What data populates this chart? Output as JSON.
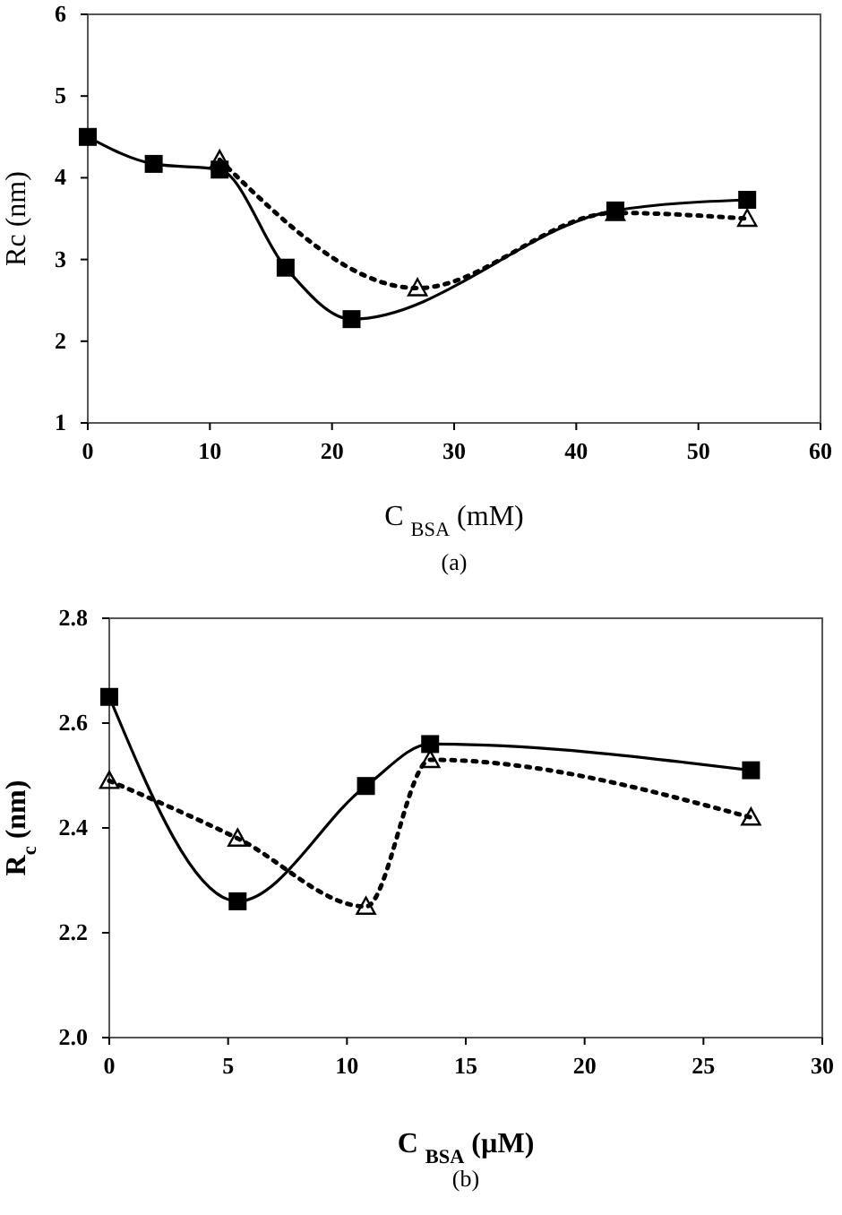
{
  "chart_data": [
    {
      "type": "line",
      "xlabel": "C $_{BSA}$ (mM)",
      "ylabel": "Rc (nm)",
      "annotations": [
        "(a)"
      ],
      "xlim": [
        0,
        60
      ],
      "xticks": [
        0,
        10,
        20,
        30,
        40,
        50,
        60
      ],
      "ylim": [
        1,
        6
      ],
      "yticks": [
        1,
        2,
        3,
        4,
        5,
        6
      ],
      "grid": false,
      "series": [
        {
          "color": "#000000",
          "marker": "square",
          "line_style": "solid",
          "x": [
            0,
            5.4,
            10.8,
            16.2,
            21.6,
            43.2,
            54
          ],
          "values": [
            4.5,
            4.17,
            4.1,
            2.9,
            2.27,
            3.6,
            3.73
          ]
        },
        {
          "color": "#000000",
          "marker": "triangle",
          "line_style": "dotted",
          "x": [
            10.8,
            27,
            43.2,
            54
          ],
          "values": [
            4.22,
            2.65,
            3.57,
            3.5
          ]
        }
      ]
    },
    {
      "type": "line",
      "xlabel": "C $_{BSA}$ (µM)",
      "ylabel": "R$_{c}$ (nm)",
      "annotations": [
        "(b)"
      ],
      "xlim": [
        0,
        30
      ],
      "xticks": [
        0,
        5,
        10,
        15,
        20,
        25,
        30
      ],
      "ylim": [
        2,
        2.8
      ],
      "yticks": [
        {
          "value": 2,
          "label": "2.0"
        },
        2.2,
        2.4,
        2.6,
        2.8
      ],
      "grid": false,
      "series": [
        {
          "color": "#000000",
          "marker": "square",
          "line_style": "solid",
          "x": [
            0,
            5.4,
            10.8,
            13.5,
            27
          ],
          "values": [
            2.65,
            2.26,
            2.48,
            2.56,
            2.51
          ]
        },
        {
          "color": "#000000",
          "marker": "triangle",
          "line_style": "dotted",
          "x": [
            0,
            5.4,
            10.8,
            13.5,
            27
          ],
          "values": [
            2.49,
            2.38,
            2.25,
            2.53,
            2.42
          ]
        }
      ]
    }
  ]
}
